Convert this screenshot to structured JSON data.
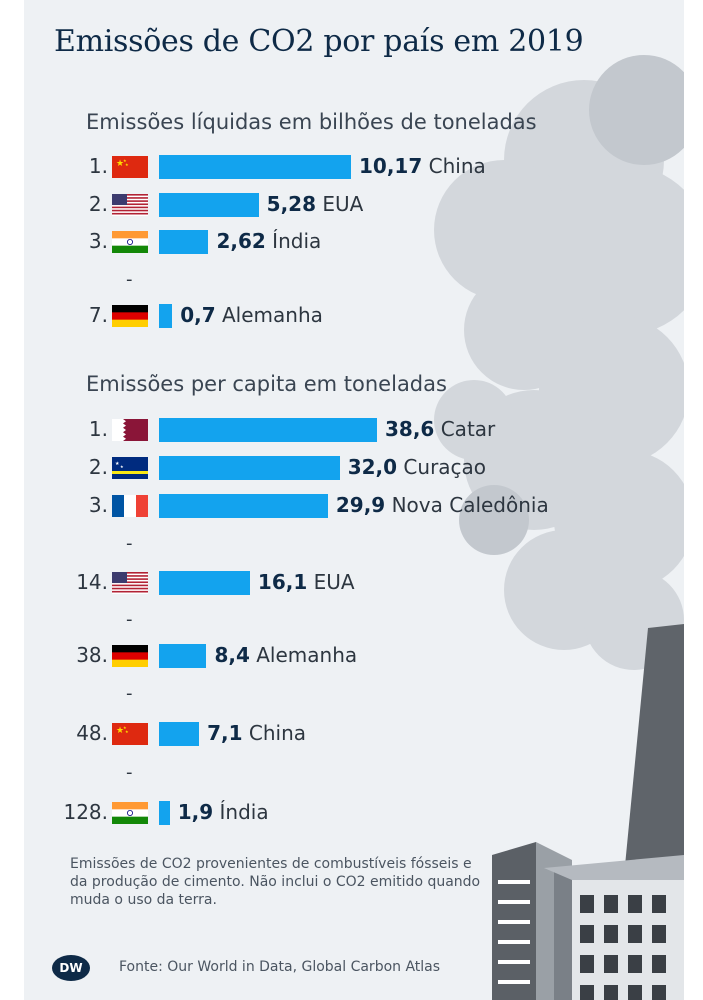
{
  "title": "Emissões de CO2 por país em 2019",
  "note": "Emissões de CO2 provenientes de combustíveis fósseis e da produção de cimento. Não inclui o CO2 emitido quando muda o uso da terra.",
  "source": "Fonte: Our World in Data, Global Carbon Atlas",
  "logo_text": "DW",
  "bar_color": "#13a3ee",
  "chart_data": [
    {
      "type": "bar",
      "title": "Emissões líquidas em bilhões de toneladas",
      "categories": [
        "China",
        "EUA",
        "Índia",
        "Alemanha"
      ],
      "ranks": [
        "1.",
        "2.",
        "3.",
        "7."
      ],
      "flags": [
        "china-flag",
        "usa-flag",
        "india-flag",
        "germany-flag"
      ],
      "values": [
        10.17,
        5.28,
        2.62,
        0.7
      ],
      "value_labels": [
        "10,17",
        "5,28",
        "2,62",
        "0,7"
      ],
      "gap_after": [
        2
      ],
      "gap_marker": "-"
    },
    {
      "type": "bar",
      "title": "Emissões per capita em toneladas",
      "categories": [
        "Catar",
        "Curaçao",
        "Nova Caledônia",
        "EUA",
        "Alemanha",
        "China",
        "Índia"
      ],
      "ranks": [
        "1.",
        "2.",
        "3.",
        "14.",
        "38.",
        "48.",
        "128."
      ],
      "flags": [
        "qatar-flag",
        "curacao-flag",
        "france-flag",
        "usa-flag",
        "germany-flag",
        "china-flag",
        "india-flag"
      ],
      "values": [
        38.6,
        32.0,
        29.9,
        16.1,
        8.4,
        7.1,
        1.9
      ],
      "value_labels": [
        "38,6",
        "32,0",
        "29,9",
        "16,1",
        "8,4",
        "7,1",
        "1,9"
      ],
      "gap_after": [
        2,
        3,
        4,
        5
      ],
      "gap_marker": "-"
    }
  ]
}
